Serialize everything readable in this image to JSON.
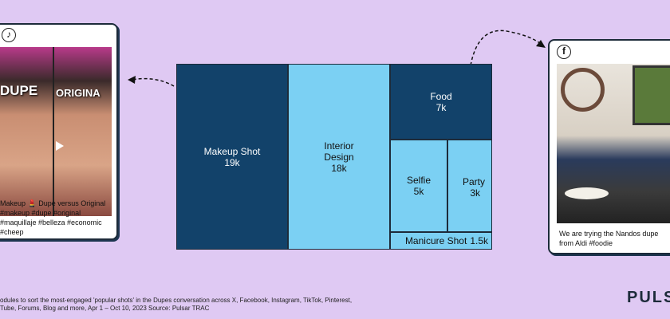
{
  "left_post": {
    "platform_icon": "tiktok-icon",
    "image_text_left": "DUPE",
    "image_text_right": "ORIGINA",
    "caption": "Makeup 💄 Dupe versus Original #makeup #dupe #original #maquillaje #belleza #economic #cheep"
  },
  "right_post": {
    "platform_icon": "facebook-icon",
    "platform_glyph": "f",
    "caption": "We are trying the Nandos dupe from Aldi #foodie"
  },
  "chart_data": {
    "type": "treemap",
    "title": "",
    "items": [
      {
        "label": "Makeup Shot",
        "value": 19000,
        "value_label": "19k",
        "color": "#12426a"
      },
      {
        "label": "Interior Design",
        "value": 18000,
        "value_label": "18k",
        "color": "#7bd0f3"
      },
      {
        "label": "Food",
        "value": 7000,
        "value_label": "7k",
        "color": "#12426a"
      },
      {
        "label": "Selfie",
        "value": 5000,
        "value_label": "5k",
        "color": "#7bd0f3"
      },
      {
        "label": "Party",
        "value": 3000,
        "value_label": "3k",
        "color": "#7bd0f3"
      },
      {
        "label": "Manicure Shot",
        "value": 1500,
        "value_label": "1.5k",
        "color": "#7bd0f3"
      }
    ]
  },
  "footnote": {
    "line1": "odules to sort the most-engaged 'popular shots' in the Dupes conversation across X, Facebook, Instagram, TikTok, Pinterest,",
    "line2": "Tube, Forums, Blog and more, Apr 1 – Oct 10, 2023 Source: Pulsar TRAC"
  },
  "brand": "PULS"
}
